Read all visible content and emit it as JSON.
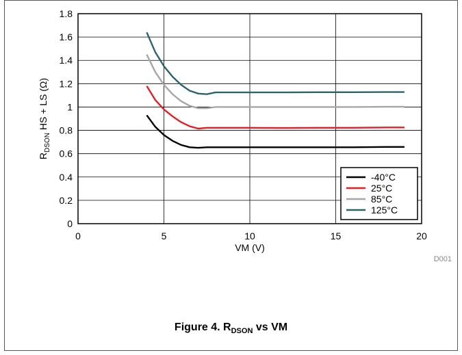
{
  "chart_data": {
    "type": "line",
    "xlabel": "VM (V)",
    "ylabel": {
      "main": "R",
      "sub": "DSON",
      "rest": " HS + LS (Ω)"
    },
    "xlim": [
      0,
      20
    ],
    "ylim": [
      0,
      1.8
    ],
    "x_ticks": [
      0,
      5,
      10,
      15,
      20
    ],
    "y_ticks": [
      0,
      0.2,
      0.4,
      0.6,
      0.8,
      1,
      1.2,
      1.4,
      1.6,
      1.8
    ],
    "x_tick_labels": [
      "0",
      "5",
      "10",
      "15",
      "20"
    ],
    "y_tick_labels": [
      "0",
      "0.2",
      "0.4",
      "0.6",
      "0.8",
      "1",
      "1.2",
      "1.4",
      "1.6",
      "1.8"
    ],
    "grid": true,
    "legend_position": "bottom-right",
    "series": [
      {
        "name": "-40°C",
        "color": "#000000",
        "x": [
          4,
          4.5,
          5,
          5.5,
          6,
          6.5,
          7,
          7.5,
          8,
          10,
          12,
          14,
          16,
          18,
          19
        ],
        "y": [
          0.93,
          0.83,
          0.76,
          0.71,
          0.675,
          0.655,
          0.65,
          0.655,
          0.655,
          0.655,
          0.655,
          0.655,
          0.655,
          0.658,
          0.658
        ]
      },
      {
        "name": "25°C",
        "color": "#e31e24",
        "x": [
          4,
          4.5,
          5,
          5.5,
          6,
          6.5,
          7,
          7.5,
          8,
          10,
          12,
          14,
          16,
          18,
          19
        ],
        "y": [
          1.18,
          1.06,
          0.98,
          0.92,
          0.87,
          0.835,
          0.815,
          0.822,
          0.822,
          0.822,
          0.82,
          0.822,
          0.822,
          0.825,
          0.825
        ]
      },
      {
        "name": "85°C",
        "color": "#a6a6a6",
        "x": [
          4,
          4.5,
          5,
          5.5,
          6,
          6.5,
          7,
          7.5,
          8,
          10,
          12,
          14,
          16,
          18,
          19
        ],
        "y": [
          1.45,
          1.3,
          1.19,
          1.11,
          1.05,
          1.01,
          0.99,
          0.99,
          1.0,
          1.0,
          1.0,
          1.0,
          1.0,
          1.002,
          1.002
        ]
      },
      {
        "name": "125°C",
        "color": "#2c6171",
        "x": [
          4,
          4.5,
          5,
          5.5,
          6,
          6.5,
          7,
          7.5,
          8,
          10,
          12,
          14,
          16,
          18,
          19
        ],
        "y": [
          1.64,
          1.47,
          1.35,
          1.26,
          1.19,
          1.14,
          1.115,
          1.11,
          1.125,
          1.125,
          1.125,
          1.127,
          1.127,
          1.128,
          1.128
        ]
      }
    ],
    "annotation": "D001"
  },
  "figure": {
    "caption_pre": "Figure 4. R",
    "caption_sub": "DSON",
    "caption_post": " vs VM"
  }
}
